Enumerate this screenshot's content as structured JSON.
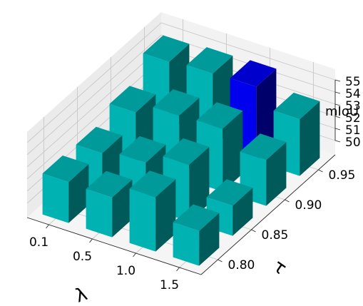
{
  "chart_data": {
    "type": "bar3d",
    "xlabel": "λ",
    "ylabel": "τ",
    "zlabel": "mIoU",
    "x_categories": [
      "0.1",
      "0.5",
      "1.0",
      "1.5"
    ],
    "y_categories": [
      "0.80",
      "0.85",
      "0.90",
      "0.95"
    ],
    "z_ticks": [
      "50",
      "51",
      "52",
      "53",
      "54",
      "55"
    ],
    "zlim": [
      50,
      55
    ],
    "grid": true,
    "colors": {
      "bar": "#00b2b2",
      "bar_top": "#009a9a",
      "bar_side": "#005a5a",
      "highlight": "#0000ee",
      "highlight_top": "#0000cc",
      "highlight_side": "#00006a"
    },
    "bars": [
      {
        "x": "0.1",
        "y": "0.80",
        "z": 52.2
      },
      {
        "x": "0.1",
        "y": "0.85",
        "z": 52.1
      },
      {
        "x": "0.1",
        "y": "0.90",
        "z": 53.0
      },
      {
        "x": "0.1",
        "y": "0.95",
        "z": 54.7
      },
      {
        "x": "0.5",
        "y": "0.80",
        "z": 52.1
      },
      {
        "x": "0.5",
        "y": "0.85",
        "z": 52.5
      },
      {
        "x": "0.5",
        "y": "0.90",
        "z": 53.9
      },
      {
        "x": "0.5",
        "y": "0.95",
        "z": 54.9
      },
      {
        "x": "1.0",
        "y": "0.80",
        "z": 53.3
      },
      {
        "x": "1.0",
        "y": "0.85",
        "z": 53.5
      },
      {
        "x": "1.0",
        "y": "0.90",
        "z": 54.0
      },
      {
        "x": "1.0",
        "y": "0.95",
        "z": 55.0,
        "highlight": true
      },
      {
        "x": "1.5",
        "y": "0.80",
        "z": 51.7
      },
      {
        "x": "1.5",
        "y": "0.85",
        "z": 51.3
      },
      {
        "x": "1.5",
        "y": "0.90",
        "z": 52.6
      },
      {
        "x": "1.5",
        "y": "0.95",
        "z": 53.5
      }
    ]
  }
}
